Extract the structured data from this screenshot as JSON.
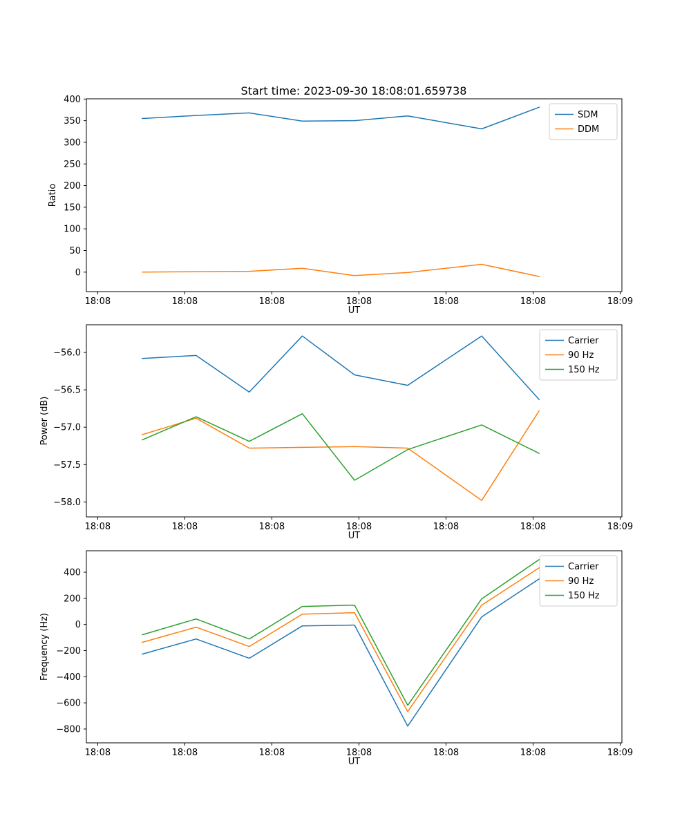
{
  "figure": {
    "title": "Start time: 2023-09-30 18:08:01.659738",
    "background_color": "#ffffff",
    "frame_color": "#000000",
    "legend_border_color": "#cccccc"
  },
  "chart_data": [
    {
      "type": "line",
      "title": "Start time: 2023-09-30 18:08:01.659738",
      "xlabel": "UT",
      "ylabel": "Ratio",
      "x_unit": "seconds after 18:08:00 UT (estimated)",
      "x": [
        5.1,
        11.3,
        17.4,
        23.5,
        29.5,
        35.6,
        44.1,
        50.7
      ],
      "xlim": [
        -1.3,
        60.2
      ],
      "ylim": [
        -45,
        400.5
      ],
      "xticks": [
        0,
        10,
        20,
        30,
        40,
        50,
        60
      ],
      "xtick_labels": [
        "18:08",
        "18:08",
        "18:08",
        "18:08",
        "18:08",
        "18:08",
        "18:09"
      ],
      "yticks": [
        0,
        50,
        100,
        150,
        200,
        250,
        300,
        350,
        400
      ],
      "ytick_labels": [
        "0",
        "50",
        "100",
        "150",
        "200",
        "250",
        "300",
        "350",
        "400"
      ],
      "grid": false,
      "legend_position": "upper right",
      "series": [
        {
          "name": "SDM",
          "color": "#1f77b4",
          "values": [
            355,
            362,
            368,
            349,
            350,
            361,
            331,
            381
          ]
        },
        {
          "name": "DDM",
          "color": "#ff7f0e",
          "values": [
            0,
            1,
            2,
            9,
            -8,
            -1,
            18,
            -10
          ]
        }
      ]
    },
    {
      "type": "line",
      "title": "",
      "xlabel": "UT",
      "ylabel": "Power (dB)",
      "x_unit": "seconds after 18:08:00 UT (estimated)",
      "x": [
        5.1,
        11.3,
        17.4,
        23.5,
        29.5,
        35.6,
        44.1,
        50.7
      ],
      "xlim": [
        -1.3,
        60.2
      ],
      "ylim": [
        -58.2,
        -55.63
      ],
      "xticks": [
        0,
        10,
        20,
        30,
        40,
        50,
        60
      ],
      "xtick_labels": [
        "18:08",
        "18:08",
        "18:08",
        "18:08",
        "18:08",
        "18:08",
        "18:09"
      ],
      "yticks": [
        -58.0,
        -57.5,
        -57.0,
        -56.5,
        -56.0
      ],
      "ytick_labels": [
        "−58.0",
        "−57.5",
        "−57.0",
        "−56.5",
        "−56.0"
      ],
      "grid": false,
      "legend_position": "upper right",
      "series": [
        {
          "name": "Carrier",
          "color": "#1f77b4",
          "values": [
            -56.08,
            -56.04,
            -56.53,
            -55.78,
            -56.3,
            -56.44,
            -55.78,
            -56.63
          ]
        },
        {
          "name": "90 Hz",
          "color": "#ff7f0e",
          "values": [
            -57.1,
            -56.88,
            -57.28,
            -57.27,
            -57.26,
            -57.28,
            -57.98,
            -56.78
          ]
        },
        {
          "name": "150 Hz",
          "color": "#2ca02c",
          "values": [
            -57.17,
            -56.86,
            -57.19,
            -56.82,
            -57.71,
            -57.3,
            -56.97,
            -57.35
          ]
        }
      ]
    },
    {
      "type": "line",
      "title": "",
      "xlabel": "UT",
      "ylabel": "Frequency (Hz)",
      "x_unit": "seconds after 18:08:00 UT (estimated)",
      "x": [
        5.1,
        11.3,
        17.4,
        23.5,
        29.5,
        35.6,
        44.1,
        50.7
      ],
      "xlim": [
        -1.3,
        60.2
      ],
      "ylim": [
        -906,
        564
      ],
      "xticks": [
        0,
        10,
        20,
        30,
        40,
        50,
        60
      ],
      "xtick_labels": [
        "18:08",
        "18:08",
        "18:08",
        "18:08",
        "18:08",
        "18:08",
        "18:09"
      ],
      "yticks": [
        -800,
        -600,
        -400,
        -200,
        0,
        200,
        400
      ],
      "ytick_labels": [
        "−800",
        "−600",
        "−400",
        "−200",
        "0",
        "200",
        "400"
      ],
      "grid": false,
      "legend_position": "upper right",
      "series": [
        {
          "name": "Carrier",
          "color": "#1f77b4",
          "values": [
            -227,
            -111,
            -259,
            -11,
            -5,
            -778,
            58,
            349
          ]
        },
        {
          "name": "90 Hz",
          "color": "#ff7f0e",
          "values": [
            -137,
            -21,
            -169,
            79,
            90,
            -667,
            148,
            434
          ]
        },
        {
          "name": "150 Hz",
          "color": "#2ca02c",
          "values": [
            -79,
            42,
            -111,
            138,
            148,
            -619,
            196,
            497
          ]
        }
      ]
    }
  ]
}
